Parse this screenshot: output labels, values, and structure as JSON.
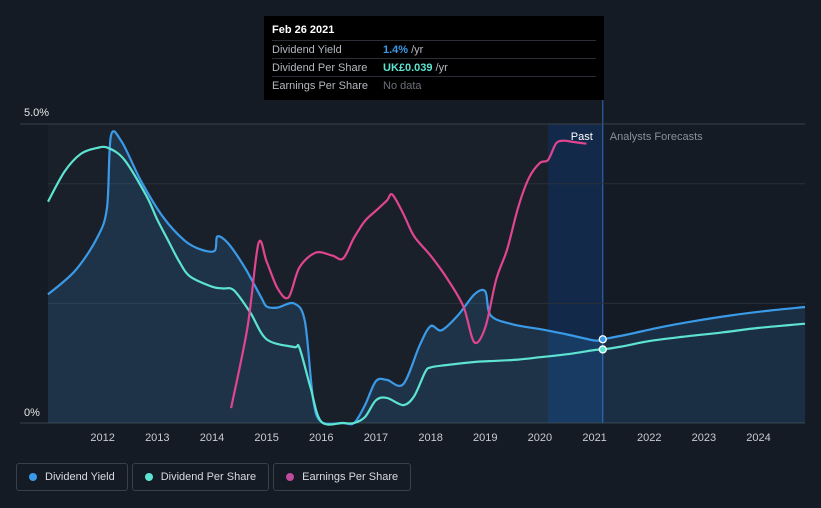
{
  "chart_data": {
    "type": "line",
    "y_axis": {
      "min": 0,
      "max": 5.0,
      "top_label": "5.0%",
      "bottom_label": "0%"
    },
    "x_axis": {
      "min": 2011.0,
      "max": 2024.85,
      "ticks": [
        2012,
        2013,
        2014,
        2015,
        2016,
        2017,
        2018,
        2019,
        2020,
        2021,
        2022,
        2023,
        2024
      ]
    },
    "regions": {
      "past_label": "Past",
      "forecast_label": "Analysts Forecasts",
      "highlight_start": 2020.15,
      "divider_x": 2021.15
    },
    "series": [
      {
        "name": "Dividend Yield",
        "color": "#3b9ae8",
        "filled": true,
        "x": [
          2011.0,
          2011.5,
          2011.9,
          2012.08,
          2012.15,
          2012.35,
          2012.7,
          2013.1,
          2013.5,
          2013.8,
          2014.05,
          2014.1,
          2014.3,
          2014.6,
          2014.9,
          2015.0,
          2015.2,
          2015.5,
          2015.7,
          2015.85,
          2016.0,
          2016.4,
          2016.6,
          2016.8,
          2017.0,
          2017.2,
          2017.5,
          2017.8,
          2018.0,
          2018.2,
          2018.5,
          2018.8,
          2019.0,
          2019.1,
          2019.5,
          2020.0,
          2020.5,
          2021.0,
          2021.15,
          2021.6,
          2022.2,
          2022.8,
          2023.5,
          2024.2,
          2024.85
        ],
        "y": [
          2.15,
          2.55,
          3.1,
          3.6,
          4.8,
          4.7,
          4.05,
          3.45,
          3.05,
          2.9,
          2.88,
          3.12,
          3.0,
          2.6,
          2.1,
          1.95,
          1.93,
          2.0,
          1.7,
          0.4,
          0.02,
          0.0,
          0.0,
          0.3,
          0.7,
          0.72,
          0.65,
          1.3,
          1.62,
          1.55,
          1.8,
          2.15,
          2.2,
          1.8,
          1.65,
          1.57,
          1.48,
          1.38,
          1.4,
          1.48,
          1.6,
          1.7,
          1.8,
          1.88,
          1.94
        ]
      },
      {
        "name": "Dividend Per Share",
        "color": "#5de3d0",
        "filled": false,
        "x": [
          2011.0,
          2011.3,
          2011.6,
          2011.9,
          2012.1,
          2012.4,
          2012.8,
          2013.0,
          2013.2,
          2013.4,
          2013.6,
          2014.0,
          2014.2,
          2014.4,
          2014.7,
          2015.0,
          2015.5,
          2015.6,
          2015.8,
          2016.0,
          2016.4,
          2016.6,
          2016.8,
          2017.0,
          2017.2,
          2017.5,
          2017.7,
          2017.9,
          2018.0,
          2018.3,
          2018.8,
          2019.2,
          2019.6,
          2020.0,
          2020.5,
          2021.0,
          2021.15,
          2021.5,
          2022.0,
          2022.6,
          2023.3,
          2024.0,
          2024.85
        ],
        "y": [
          3.7,
          4.2,
          4.5,
          4.6,
          4.6,
          4.4,
          3.8,
          3.4,
          3.05,
          2.7,
          2.45,
          2.28,
          2.25,
          2.22,
          1.85,
          1.4,
          1.27,
          1.26,
          0.6,
          0.02,
          0.0,
          0.0,
          0.1,
          0.38,
          0.42,
          0.3,
          0.45,
          0.85,
          0.93,
          0.97,
          1.02,
          1.04,
          1.06,
          1.1,
          1.15,
          1.22,
          1.23,
          1.28,
          1.37,
          1.44,
          1.51,
          1.59,
          1.66
        ]
      },
      {
        "name": "Earnings Per Share",
        "color": "#e0458f",
        "filled": false,
        "x": [
          2014.35,
          2014.65,
          2014.85,
          2015.0,
          2015.2,
          2015.4,
          2015.6,
          2015.9,
          2016.2,
          2016.4,
          2016.6,
          2016.8,
          2017.0,
          2017.2,
          2017.3,
          2017.5,
          2017.7,
          2018.0,
          2018.3,
          2018.6,
          2018.8,
          2019.0,
          2019.2,
          2019.4,
          2019.6,
          2019.8,
          2020.0,
          2020.15,
          2020.3,
          2020.45,
          2020.6,
          2020.85
        ],
        "y": [
          0.25,
          1.6,
          3.0,
          2.7,
          2.25,
          2.1,
          2.6,
          2.85,
          2.8,
          2.75,
          3.1,
          3.38,
          3.55,
          3.72,
          3.82,
          3.5,
          3.12,
          2.8,
          2.42,
          1.95,
          1.35,
          1.6,
          2.4,
          2.9,
          3.6,
          4.1,
          4.35,
          4.4,
          4.68,
          4.72,
          4.7,
          4.67
        ]
      }
    ],
    "markers": [
      {
        "series": "Dividend Yield",
        "x": 2021.15,
        "y": 1.4
      },
      {
        "series": "Dividend Per Share",
        "x": 2021.15,
        "y": 1.23
      }
    ],
    "tooltip": {
      "title": "Feb 26 2021",
      "rows": [
        {
          "label": "Dividend Yield",
          "value": "1.4%",
          "unit": "/yr",
          "color": "#3b9ae8"
        },
        {
          "label": "Dividend Per Share",
          "value": "UK£0.039",
          "unit": "/yr",
          "color": "#5de3d0"
        },
        {
          "label": "Earnings Per Share",
          "value": "No data",
          "unit": "",
          "color": "#6b7078"
        }
      ]
    },
    "legend": [
      {
        "label": "Dividend Yield",
        "color": "#3b9ae8"
      },
      {
        "label": "Dividend Per Share",
        "color": "#5de3d0"
      },
      {
        "label": "Earnings Per Share",
        "color": "#c04a9b"
      }
    ]
  }
}
